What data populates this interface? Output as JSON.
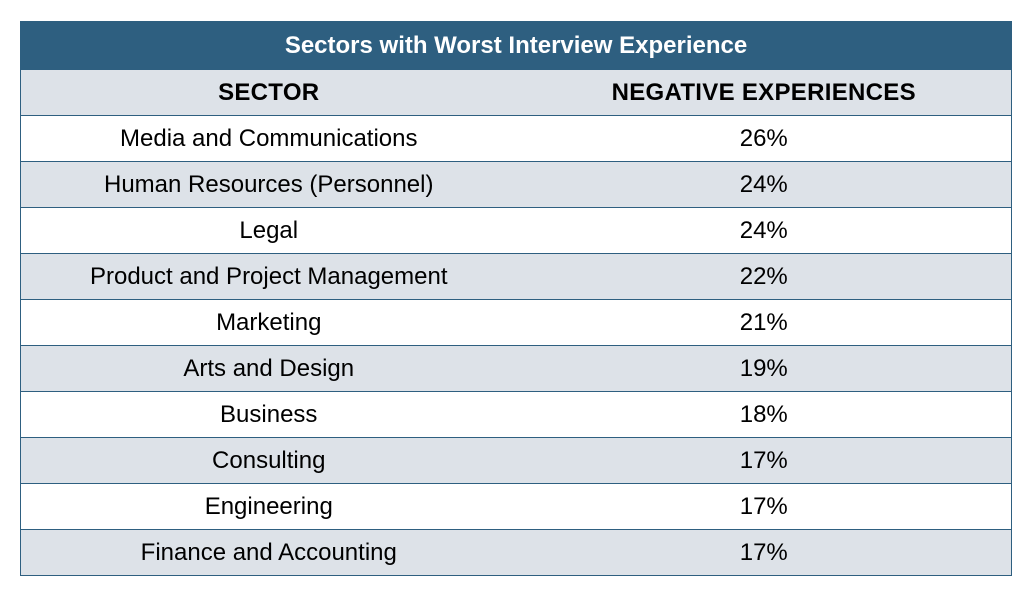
{
  "chart_data": {
    "type": "table",
    "title": "Sectors with Worst Interview Experience",
    "columns": [
      "SECTOR",
      "NEGATIVE EXPERIENCES"
    ],
    "rows": [
      {
        "sector": "Media and Communications",
        "value": "26%"
      },
      {
        "sector": "Human Resources (Personnel)",
        "value": "24%"
      },
      {
        "sector": "Legal",
        "value": "24%"
      },
      {
        "sector": "Product and Project Management",
        "value": "22%"
      },
      {
        "sector": "Marketing",
        "value": "21%"
      },
      {
        "sector": "Arts and Design",
        "value": "19%"
      },
      {
        "sector": "Business",
        "value": "18%"
      },
      {
        "sector": "Consulting",
        "value": "17%"
      },
      {
        "sector": "Engineering",
        "value": "17%"
      },
      {
        "sector": "Finance and Accounting",
        "value": "17%"
      }
    ],
    "colors": {
      "header": "#2e5f80",
      "band": "#dde2e8",
      "border": "#2e5f80"
    }
  }
}
